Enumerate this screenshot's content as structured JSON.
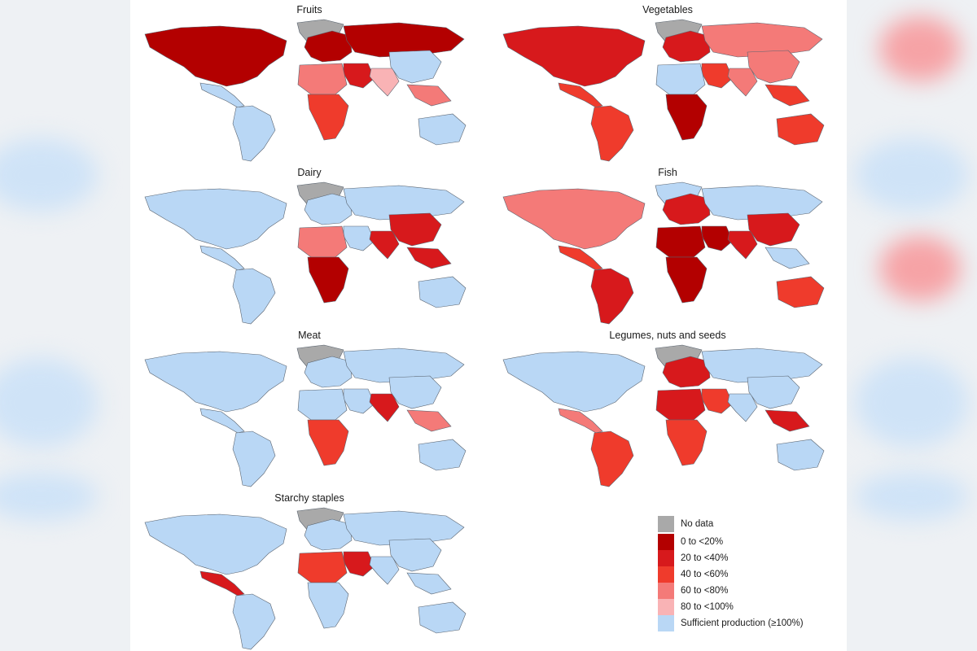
{
  "colors": {
    "no_data": "#a9a9a9",
    "bin_0_20": "#b30000",
    "bin_20_40": "#d7191c",
    "bin_40_60": "#ef3b2c",
    "bin_60_80": "#f47a78",
    "bin_80_100": "#f9b3b5",
    "sufficient": "#b9d7f5"
  },
  "panels": [
    {
      "title": "Fruits",
      "regions": {
        "greenland": "no_data",
        "north_america": "bin_0_20",
        "central_america": "sufficient",
        "south_america": "sufficient",
        "europe": "bin_0_20",
        "russia": "bin_0_20",
        "middle_east": "bin_20_40",
        "north_africa": "bin_60_80",
        "sub_saharan_africa": "bin_40_60",
        "south_asia": "bin_80_100",
        "east_asia": "sufficient",
        "southeast_asia": "bin_60_80",
        "australia": "sufficient"
      }
    },
    {
      "title": "Vegetables",
      "regions": {
        "greenland": "no_data",
        "north_america": "bin_20_40",
        "central_america": "bin_40_60",
        "south_america": "bin_40_60",
        "europe": "bin_20_40",
        "russia": "bin_60_80",
        "middle_east": "bin_40_60",
        "north_africa": "sufficient",
        "sub_saharan_africa": "bin_0_20",
        "south_asia": "bin_60_80",
        "east_asia": "bin_60_80",
        "southeast_asia": "bin_40_60",
        "australia": "bin_40_60"
      }
    },
    {
      "title": "Dairy",
      "regions": {
        "greenland": "no_data",
        "north_america": "sufficient",
        "central_america": "sufficient",
        "south_america": "sufficient",
        "europe": "sufficient",
        "russia": "sufficient",
        "middle_east": "sufficient",
        "north_africa": "bin_60_80",
        "sub_saharan_africa": "bin_0_20",
        "south_asia": "bin_20_40",
        "east_asia": "bin_20_40",
        "southeast_asia": "bin_20_40",
        "australia": "sufficient"
      }
    },
    {
      "title": "Fish",
      "regions": {
        "greenland": "sufficient",
        "north_america": "bin_60_80",
        "central_america": "bin_40_60",
        "south_america": "bin_20_40",
        "europe": "bin_20_40",
        "russia": "sufficient",
        "middle_east": "bin_0_20",
        "north_africa": "bin_0_20",
        "sub_saharan_africa": "bin_0_20",
        "south_asia": "bin_20_40",
        "east_asia": "bin_20_40",
        "southeast_asia": "sufficient",
        "australia": "bin_40_60"
      }
    },
    {
      "title": "Meat",
      "regions": {
        "greenland": "no_data",
        "north_america": "sufficient",
        "central_america": "sufficient",
        "south_america": "sufficient",
        "europe": "sufficient",
        "russia": "sufficient",
        "middle_east": "sufficient",
        "north_africa": "sufficient",
        "sub_saharan_africa": "bin_40_60",
        "south_asia": "bin_20_40",
        "east_asia": "sufficient",
        "southeast_asia": "bin_60_80",
        "australia": "sufficient"
      }
    },
    {
      "title": "Legumes, nuts and seeds",
      "regions": {
        "greenland": "no_data",
        "north_america": "sufficient",
        "central_america": "bin_60_80",
        "south_america": "bin_40_60",
        "europe": "bin_20_40",
        "russia": "sufficient",
        "middle_east": "bin_40_60",
        "north_africa": "bin_20_40",
        "sub_saharan_africa": "bin_40_60",
        "south_asia": "sufficient",
        "east_asia": "sufficient",
        "southeast_asia": "bin_20_40",
        "australia": "sufficient"
      }
    },
    {
      "title": "Starchy staples",
      "regions": {
        "greenland": "no_data",
        "north_america": "sufficient",
        "central_america": "bin_20_40",
        "south_america": "sufficient",
        "europe": "sufficient",
        "russia": "sufficient",
        "middle_east": "bin_20_40",
        "north_africa": "bin_40_60",
        "sub_saharan_africa": "sufficient",
        "south_asia": "sufficient",
        "east_asia": "sufficient",
        "southeast_asia": "sufficient",
        "australia": "sufficient"
      }
    }
  ],
  "legend": {
    "items": [
      {
        "label": "No data",
        "color_key": "no_data"
      },
      {
        "label": "0 to <20%",
        "color_key": "bin_0_20"
      },
      {
        "label": "20 to <40%",
        "color_key": "bin_20_40"
      },
      {
        "label": "40 to <60%",
        "color_key": "bin_40_60"
      },
      {
        "label": "60 to <80%",
        "color_key": "bin_60_80"
      },
      {
        "label": "80 to <100%",
        "color_key": "bin_80_100"
      },
      {
        "label": "Sufficient production (≥100%)",
        "color_key": "sufficient"
      }
    ]
  }
}
